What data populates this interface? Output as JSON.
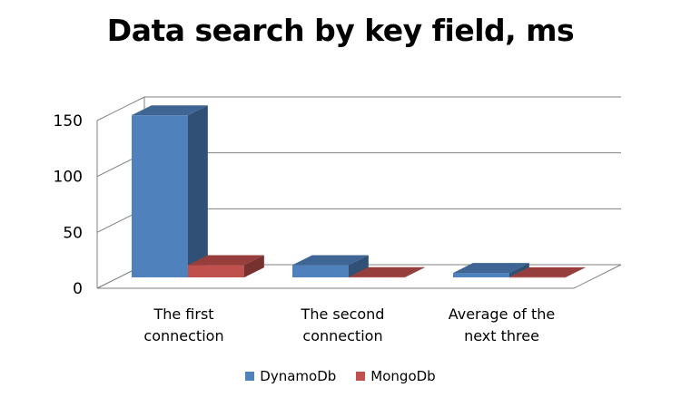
{
  "chart_data": {
    "type": "bar",
    "title": "Data search by key field, ms",
    "categories": [
      [
        "The first",
        "connection"
      ],
      [
        "The second",
        "connection"
      ],
      [
        "Average of the",
        "next three"
      ]
    ],
    "series": [
      {
        "name": "DynamoDb",
        "values": [
          145,
          11,
          4
        ],
        "color": "#4F81BD"
      },
      {
        "name": "MongoDb",
        "values": [
          11,
          0.3,
          0.2
        ],
        "color": "#C0504D"
      }
    ],
    "ylim": [
      0,
      150
    ],
    "yticks": [
      0,
      50,
      100,
      150
    ],
    "grid": true,
    "legend": "bottom"
  }
}
